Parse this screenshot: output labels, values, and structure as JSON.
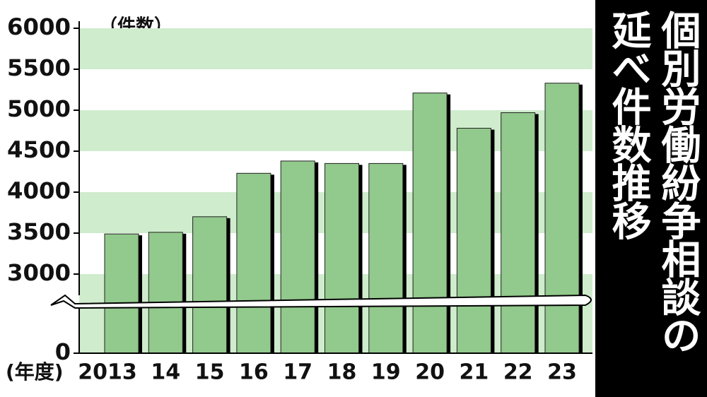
{
  "chart_data": {
    "type": "bar",
    "title": [
      "個別労働紛争相談の",
      "延べ件数推移"
    ],
    "y_unit": "（件数）",
    "x_unit": "(年度)",
    "categories": [
      "2013",
      "14",
      "15",
      "16",
      "17",
      "18",
      "19",
      "20",
      "21",
      "22",
      "23"
    ],
    "values": [
      3490,
      3510,
      3700,
      4230,
      4380,
      4350,
      4350,
      5210,
      4780,
      4970,
      5330
    ],
    "color": "#92c98c",
    "ylim": [
      0,
      6000
    ],
    "yticks": [
      0,
      3000,
      3500,
      4000,
      4500,
      5000,
      5500,
      6000
    ]
  }
}
